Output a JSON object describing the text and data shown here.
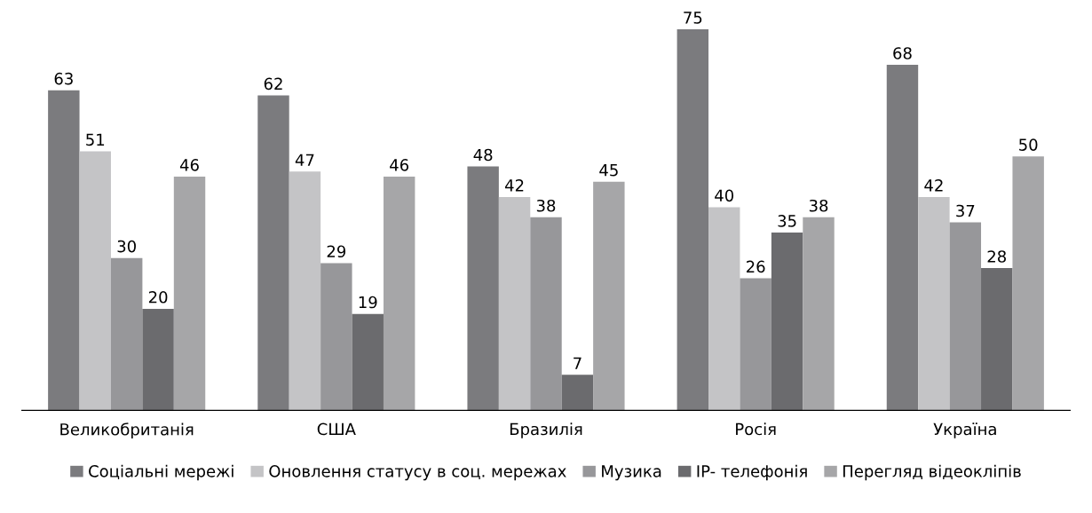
{
  "chart_data": {
    "type": "bar",
    "categories": [
      "Великобританія",
      "США",
      "Бразилія",
      "Росія",
      "Україна"
    ],
    "series": [
      {
        "name": "Соціальні мережі",
        "color": "#7b7b7e",
        "values": [
          63,
          62,
          48,
          75,
          68
        ]
      },
      {
        "name": "Оновлення статусу в соц. мережах",
        "color": "#c4c4c6",
        "values": [
          51,
          47,
          42,
          40,
          42
        ]
      },
      {
        "name": "Музика",
        "color": "#97979a",
        "values": [
          30,
          29,
          38,
          26,
          37
        ]
      },
      {
        "name": "IP- телефонія",
        "color": "#6b6b6e",
        "values": [
          20,
          19,
          7,
          35,
          28
        ]
      },
      {
        "name": "Перегляд відеокліпів",
        "color": "#a6a6a8",
        "values": [
          46,
          46,
          45,
          38,
          50
        ]
      }
    ],
    "data_labels": true,
    "legend": "bottom",
    "grid": false
  }
}
